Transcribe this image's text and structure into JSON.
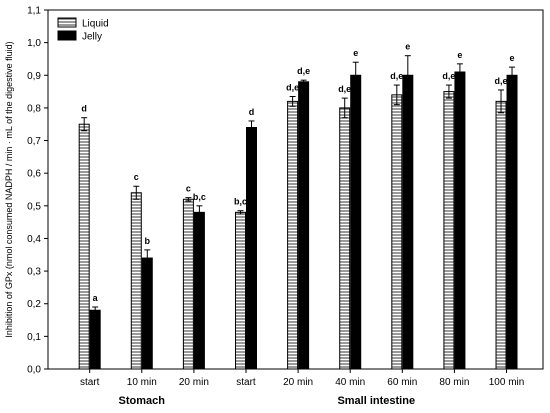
{
  "chart_data": {
    "type": "bar",
    "ylabel": "Inhibition of GPx (nmol consumed NADPH / min · mL of the digestive fluid)",
    "ylim": [
      0,
      1.1
    ],
    "yticks": [
      "0,0",
      "0,1",
      "0,2",
      "0,3",
      "0,4",
      "0,5",
      "0,6",
      "0,7",
      "0,8",
      "0,9",
      "1,0",
      "1,1"
    ],
    "ytick_values": [
      0,
      0.1,
      0.2,
      0.3,
      0.4,
      0.5,
      0.6,
      0.7,
      0.8,
      0.9,
      1.0,
      1.1
    ],
    "categories": [
      "start",
      "10 min",
      "20 min",
      "start",
      "20 min",
      "40 min",
      "60 min",
      "80 min",
      "100 min"
    ],
    "groups": [
      {
        "label": "Stomach",
        "from": 0,
        "to": 2
      },
      {
        "label": "Small intestine",
        "from": 3,
        "to": 8
      }
    ],
    "legend": {
      "position": "top-left"
    },
    "series": [
      {
        "name": "Liquid",
        "pattern": "hatched",
        "values": [
          0.75,
          0.54,
          0.52,
          0.48,
          0.82,
          0.8,
          0.84,
          0.85,
          0.82
        ],
        "errors": [
          0.02,
          0.02,
          0.005,
          0.005,
          0.015,
          0.03,
          0.03,
          0.02,
          0.035
        ],
        "labels": [
          "d",
          "c",
          "c",
          "b,c",
          "d,e",
          "d,e",
          "d,e",
          "d,e",
          "d,e"
        ]
      },
      {
        "name": "Jelly",
        "pattern": "solid",
        "values": [
          0.18,
          0.34,
          0.48,
          0.74,
          0.88,
          0.9,
          0.9,
          0.91,
          0.9
        ],
        "errors": [
          0.01,
          0.025,
          0.02,
          0.02,
          0.005,
          0.04,
          0.06,
          0.025,
          0.025
        ],
        "labels": [
          "a",
          "b",
          "b,c",
          "d",
          "d,e",
          "e",
          "e",
          "e",
          "e"
        ]
      }
    ]
  }
}
